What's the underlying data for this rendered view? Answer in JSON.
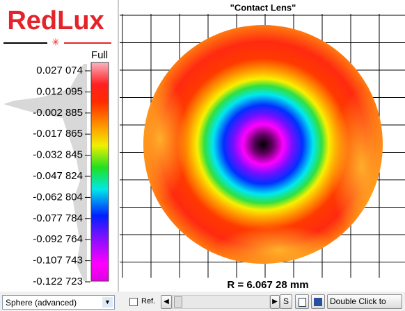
{
  "logo": "RedLux",
  "scale": {
    "title": "Full",
    "labels": [
      "0.027 074",
      "0.012 095",
      "-0.002 885",
      "-0.017 865",
      "-0.032 845",
      "-0.047 824",
      "-0.062 804",
      "-0.077 784",
      "-0.092 764",
      "-0.107 743",
      "-0.122 723"
    ]
  },
  "plot": {
    "title": "\"Contact Lens\"",
    "radius_label": "R = 6.067 28 mm"
  },
  "toolbar": {
    "mode": "Sphere (advanced)",
    "ref_label": "Ref.",
    "s_button": "S",
    "action_button": "Double Click to"
  }
}
